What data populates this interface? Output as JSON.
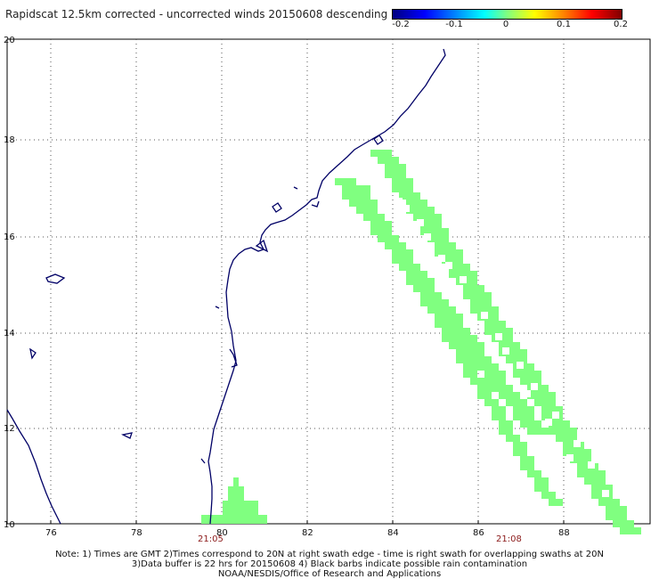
{
  "title": "Rapidscat 12.5km corrected - uncorrected winds 20150608 descending",
  "colorbar": {
    "ticks": [
      "-0.2",
      "-0.1",
      "0",
      "0.1",
      "0.2"
    ],
    "range": [
      -0.2,
      0.2
    ]
  },
  "map": {
    "lon_range": [
      75,
      90
    ],
    "lat_range": [
      10,
      20
    ],
    "x_ticks": [
      "76",
      "78",
      "80",
      "82",
      "84",
      "86",
      "88"
    ],
    "y_ticks": [
      "10",
      "12",
      "14",
      "16",
      "18",
      "20"
    ],
    "grid": "dotted",
    "coastline_color": "#000066",
    "swath_color": "#80ff80",
    "time_labels": [
      "21:05",
      "21:08"
    ]
  },
  "notes": {
    "line1": "Note: 1) Times are GMT 2)Times correspond to 20N at right swath edge - time is right swath for overlapping swaths at 20N",
    "line2": "3)Data buffer is 22 hrs for 20150608 4) Black barbs indicate possible rain contamination",
    "line3": "NOAA/NESDIS/Office of Research and Applications"
  }
}
